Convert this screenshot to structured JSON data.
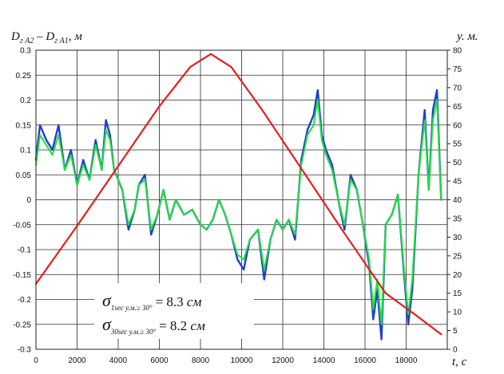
{
  "chart_data": {
    "type": "line",
    "title": "",
    "y_left_label": "Dг A2 – Dг A1, м",
    "y_left_label_parts": {
      "base": "D",
      "sub1": "г A2",
      "minus": " – ",
      "sub2": "г A1",
      "tail": ", м"
    },
    "y_right_label": "у. м.",
    "x_label": "t, с",
    "x_range": [
      0,
      20000
    ],
    "y_left_range": [
      -0.3,
      0.3
    ],
    "y_right_range": [
      0,
      80
    ],
    "x_ticks": [
      "0",
      "2000",
      "4000",
      "6000",
      "8000",
      "10000",
      "12000",
      "14000",
      "16000",
      "18000"
    ],
    "x_tick_values": [
      0,
      2000,
      4000,
      6000,
      8000,
      10000,
      12000,
      14000,
      16000,
      18000
    ],
    "y_left_ticks": [
      "0.3",
      "0.25",
      "0.2",
      "0.15",
      "0.1",
      "0.05",
      "0",
      "-0.05",
      "-0.1",
      "-0.15",
      "-0.2",
      "-0.25",
      "-0.3"
    ],
    "y_left_tick_values": [
      0.3,
      0.25,
      0.2,
      0.15,
      0.1,
      0.05,
      0,
      -0.05,
      -0.1,
      -0.15,
      -0.2,
      -0.25,
      -0.3
    ],
    "y_right_ticks": [
      "80",
      "75",
      "70",
      "65",
      "60",
      "55",
      "50",
      "45",
      "40",
      "35",
      "30",
      "25",
      "20",
      "15",
      "10",
      "5",
      "0"
    ],
    "y_right_tick_values": [
      80,
      75,
      70,
      65,
      60,
      55,
      50,
      45,
      40,
      35,
      30,
      25,
      20,
      15,
      10,
      5,
      0
    ],
    "grid": true,
    "series": [
      {
        "color": "#1f3fd1",
        "axis": "left",
        "x": [
          0,
          200,
          500,
          800,
          1100,
          1400,
          1700,
          2000,
          2300,
          2600,
          2900,
          3200,
          3400,
          3600,
          3800,
          4000,
          4200,
          4500,
          4800,
          5000,
          5300,
          5600,
          5900,
          6200,
          6500,
          6800,
          7200,
          7600,
          8000,
          8300,
          8600,
          8900,
          9200,
          9500,
          9800,
          10100,
          10400,
          10800,
          11100,
          11400,
          11700,
          12000,
          12300,
          12600,
          12900,
          13200,
          13500,
          13700,
          13900,
          14100,
          14400,
          14700,
          15000,
          15300,
          15600,
          15900,
          16200,
          16400,
          16600,
          16800,
          17000,
          17300,
          17600,
          17900,
          18100,
          18300,
          18600,
          18900,
          19100,
          19300,
          19500,
          19700
        ],
        "values": [
          0.08,
          0.15,
          0.12,
          0.1,
          0.15,
          0.06,
          0.1,
          0.03,
          0.08,
          0.04,
          0.12,
          0.06,
          0.16,
          0.13,
          0.06,
          0.04,
          0.02,
          -0.06,
          -0.02,
          0.03,
          0.05,
          -0.07,
          -0.03,
          0.02,
          -0.04,
          0.0,
          -0.03,
          -0.02,
          -0.05,
          -0.06,
          -0.04,
          0.0,
          -0.03,
          -0.07,
          -0.12,
          -0.14,
          -0.08,
          -0.06,
          -0.16,
          -0.08,
          -0.04,
          -0.06,
          -0.04,
          -0.08,
          0.08,
          0.14,
          0.17,
          0.22,
          0.13,
          0.1,
          0.07,
          0.0,
          -0.06,
          0.05,
          0.02,
          -0.05,
          -0.13,
          -0.24,
          -0.18,
          -0.28,
          -0.05,
          -0.03,
          0.01,
          -0.15,
          -0.25,
          -0.18,
          0.05,
          0.18,
          0.02,
          0.18,
          0.22,
          0.0
        ]
      },
      {
        "color": "#22e03a",
        "axis": "left",
        "x": [
          0,
          200,
          500,
          800,
          1100,
          1400,
          1700,
          2000,
          2300,
          2600,
          2900,
          3200,
          3400,
          3600,
          3800,
          4000,
          4200,
          4500,
          4800,
          5000,
          5300,
          5600,
          5900,
          6200,
          6500,
          6800,
          7200,
          7600,
          8000,
          8300,
          8600,
          8900,
          9200,
          9500,
          9800,
          10100,
          10400,
          10800,
          11100,
          11400,
          11700,
          12000,
          12300,
          12600,
          12900,
          13200,
          13500,
          13700,
          13900,
          14100,
          14400,
          14700,
          15000,
          15300,
          15600,
          15900,
          16200,
          16400,
          16600,
          16800,
          17000,
          17300,
          17600,
          17900,
          18100,
          18300,
          18600,
          18900,
          19100,
          19300,
          19500,
          19700
        ],
        "values": [
          0.07,
          0.13,
          0.11,
          0.09,
          0.13,
          0.06,
          0.09,
          0.03,
          0.07,
          0.04,
          0.11,
          0.06,
          0.14,
          0.12,
          0.06,
          0.04,
          0.02,
          -0.05,
          -0.02,
          0.03,
          0.04,
          -0.06,
          -0.03,
          0.02,
          -0.04,
          0.0,
          -0.03,
          -0.02,
          -0.05,
          -0.06,
          -0.04,
          0.0,
          -0.03,
          -0.07,
          -0.11,
          -0.12,
          -0.08,
          -0.06,
          -0.14,
          -0.08,
          -0.04,
          -0.06,
          -0.04,
          -0.07,
          0.07,
          0.13,
          0.15,
          0.2,
          0.12,
          0.09,
          0.06,
          0.0,
          -0.05,
          0.04,
          0.02,
          -0.05,
          -0.12,
          -0.22,
          -0.16,
          -0.25,
          -0.05,
          -0.03,
          0.01,
          -0.14,
          -0.23,
          -0.16,
          0.05,
          0.16,
          0.02,
          0.16,
          0.2,
          0.0
        ]
      },
      {
        "color": "#e02020",
        "axis": "right",
        "x": [
          0,
          2000,
          4000,
          6000,
          7500,
          8500,
          9500,
          11000,
          13000,
          15000,
          17000,
          18500,
          19700
        ],
        "values": [
          17.5,
          33,
          49,
          65,
          75.5,
          79,
          75.5,
          64,
          47.5,
          31,
          15,
          9,
          4
        ]
      }
    ]
  },
  "annotations": {
    "sigma1": {
      "symbol": "σ",
      "subscript": "1sec у.м.≥ 30°",
      "equals": "= 8.3 ",
      "unit": "см"
    },
    "sigma30": {
      "symbol": "σ",
      "subscript": "30sec у.м.≥ 30°",
      "equals": "= 8.2 ",
      "unit": "см"
    }
  }
}
